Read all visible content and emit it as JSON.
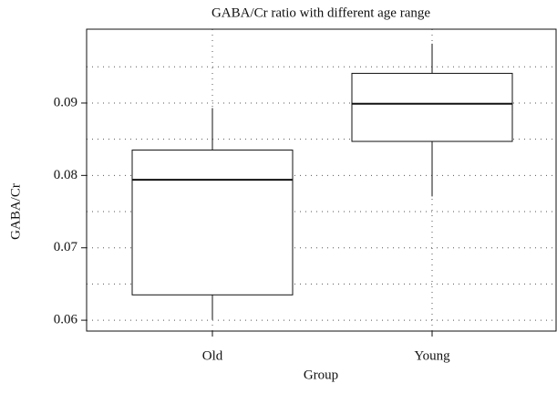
{
  "chart_data": {
    "type": "box",
    "title": "GABA/Cr ratio with different age range",
    "x_label": "Group",
    "y_label": "GABA/Cr",
    "categories": [
      "Old",
      "Young"
    ],
    "boxes": [
      {
        "min": 0.0601,
        "q1": 0.0635,
        "median": 0.0794,
        "q3": 0.0835,
        "max": 0.0893
      },
      {
        "min": 0.0771,
        "q1": 0.0847,
        "median": 0.0899,
        "q3": 0.0941,
        "max": 0.0982
      }
    ],
    "ylim": [
      0.0585,
      0.1002
    ],
    "yticks": [
      0.06,
      0.07,
      0.08,
      0.09
    ],
    "minor_yticks": [
      0.065,
      0.075,
      0.085,
      0.095
    ],
    "grid": true,
    "color": "#ffffff"
  }
}
